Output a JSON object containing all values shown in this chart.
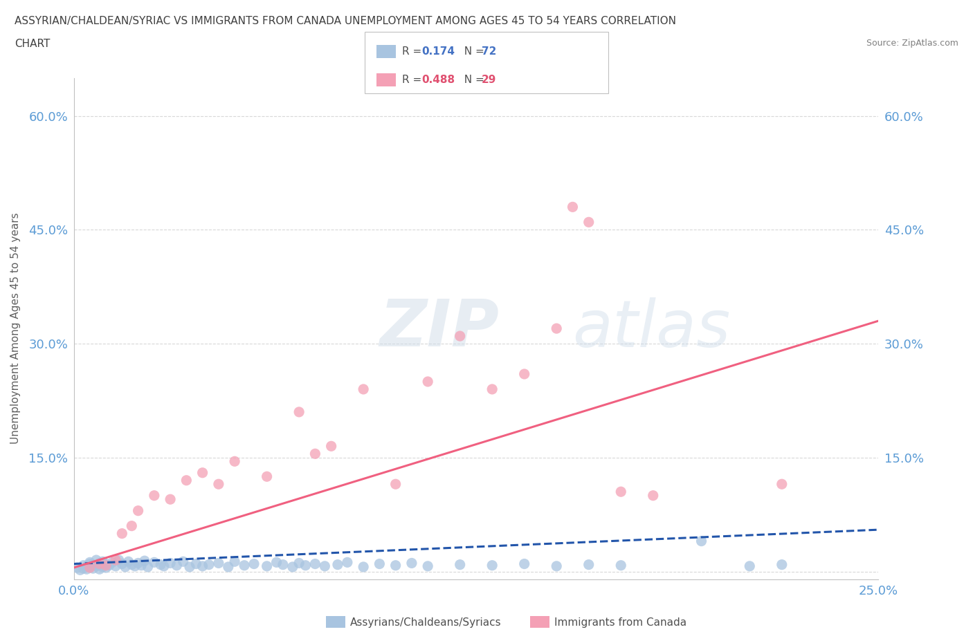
{
  "title_line1": "ASSYRIAN/CHALDEAN/SYRIAC VS IMMIGRANTS FROM CANADA UNEMPLOYMENT AMONG AGES 45 TO 54 YEARS CORRELATION",
  "title_line2": "CHART",
  "source": "Source: ZipAtlas.com",
  "ylabel": "Unemployment Among Ages 45 to 54 years",
  "xlim": [
    0.0,
    0.25
  ],
  "ylim": [
    -0.01,
    0.65
  ],
  "yticks": [
    0.0,
    0.15,
    0.3,
    0.45,
    0.6
  ],
  "ytick_labels": [
    "",
    "15.0%",
    "30.0%",
    "45.0%",
    "60.0%"
  ],
  "xticks": [
    0.0,
    0.25
  ],
  "xtick_labels": [
    "0.0%",
    "25.0%"
  ],
  "blue_R": 0.174,
  "blue_N": 72,
  "pink_R": 0.488,
  "pink_N": 29,
  "blue_color": "#a8c4e0",
  "pink_color": "#f4a0b5",
  "blue_line_color": "#2255aa",
  "pink_line_color": "#f06080",
  "blue_label": "Assyrians/Chaldeans/Syriacs",
  "pink_label": "Immigrants from Canada",
  "watermark": "ZIPatlas",
  "background_color": "#ffffff",
  "grid_color": "#d8d8d8",
  "axis_color": "#c0c0c0",
  "tick_label_color": "#5b9bd5",
  "title_color": "#404040",
  "legend_R_color_blue": "#4472c4",
  "legend_R_color_pink": "#e05070",
  "legend_N_color_blue": "#4472c4",
  "legend_N_color_pink": "#e05070",
  "blue_x": [
    0.001,
    0.002,
    0.003,
    0.003,
    0.004,
    0.004,
    0.005,
    0.005,
    0.005,
    0.006,
    0.006,
    0.007,
    0.007,
    0.008,
    0.008,
    0.008,
    0.009,
    0.009,
    0.01,
    0.01,
    0.011,
    0.012,
    0.013,
    0.014,
    0.015,
    0.016,
    0.017,
    0.018,
    0.019,
    0.02,
    0.021,
    0.022,
    0.023,
    0.025,
    0.027,
    0.028,
    0.03,
    0.032,
    0.034,
    0.036,
    0.038,
    0.04,
    0.042,
    0.045,
    0.048,
    0.05,
    0.053,
    0.056,
    0.06,
    0.063,
    0.065,
    0.068,
    0.07,
    0.072,
    0.075,
    0.078,
    0.082,
    0.085,
    0.09,
    0.095,
    0.1,
    0.105,
    0.11,
    0.12,
    0.13,
    0.14,
    0.15,
    0.16,
    0.17,
    0.195,
    0.21,
    0.22
  ],
  "blue_y": [
    0.005,
    0.002,
    0.008,
    0.004,
    0.007,
    0.003,
    0.01,
    0.006,
    0.012,
    0.004,
    0.009,
    0.007,
    0.015,
    0.003,
    0.011,
    0.008,
    0.006,
    0.013,
    0.005,
    0.01,
    0.008,
    0.012,
    0.007,
    0.015,
    0.01,
    0.006,
    0.013,
    0.009,
    0.007,
    0.011,
    0.008,
    0.014,
    0.006,
    0.012,
    0.009,
    0.007,
    0.011,
    0.008,
    0.013,
    0.006,
    0.01,
    0.007,
    0.009,
    0.011,
    0.006,
    0.013,
    0.008,
    0.01,
    0.007,
    0.012,
    0.009,
    0.006,
    0.011,
    0.008,
    0.01,
    0.007,
    0.009,
    0.012,
    0.006,
    0.01,
    0.008,
    0.011,
    0.007,
    0.009,
    0.008,
    0.01,
    0.007,
    0.009,
    0.008,
    0.04,
    0.007,
    0.009
  ],
  "pink_x": [
    0.005,
    0.008,
    0.01,
    0.013,
    0.015,
    0.018,
    0.02,
    0.025,
    0.03,
    0.035,
    0.04,
    0.045,
    0.05,
    0.06,
    0.07,
    0.075,
    0.08,
    0.09,
    0.1,
    0.11,
    0.12,
    0.13,
    0.14,
    0.15,
    0.155,
    0.16,
    0.17,
    0.18,
    0.22
  ],
  "pink_y": [
    0.005,
    0.01,
    0.008,
    0.015,
    0.05,
    0.06,
    0.08,
    0.1,
    0.095,
    0.12,
    0.13,
    0.115,
    0.145,
    0.125,
    0.21,
    0.155,
    0.165,
    0.24,
    0.115,
    0.25,
    0.31,
    0.24,
    0.26,
    0.32,
    0.48,
    0.46,
    0.105,
    0.1,
    0.115
  ],
  "blue_line_x": [
    0.0,
    0.25
  ],
  "blue_line_y": [
    0.01,
    0.055
  ],
  "pink_line_x": [
    0.0,
    0.25
  ],
  "pink_line_y": [
    0.005,
    0.33
  ]
}
